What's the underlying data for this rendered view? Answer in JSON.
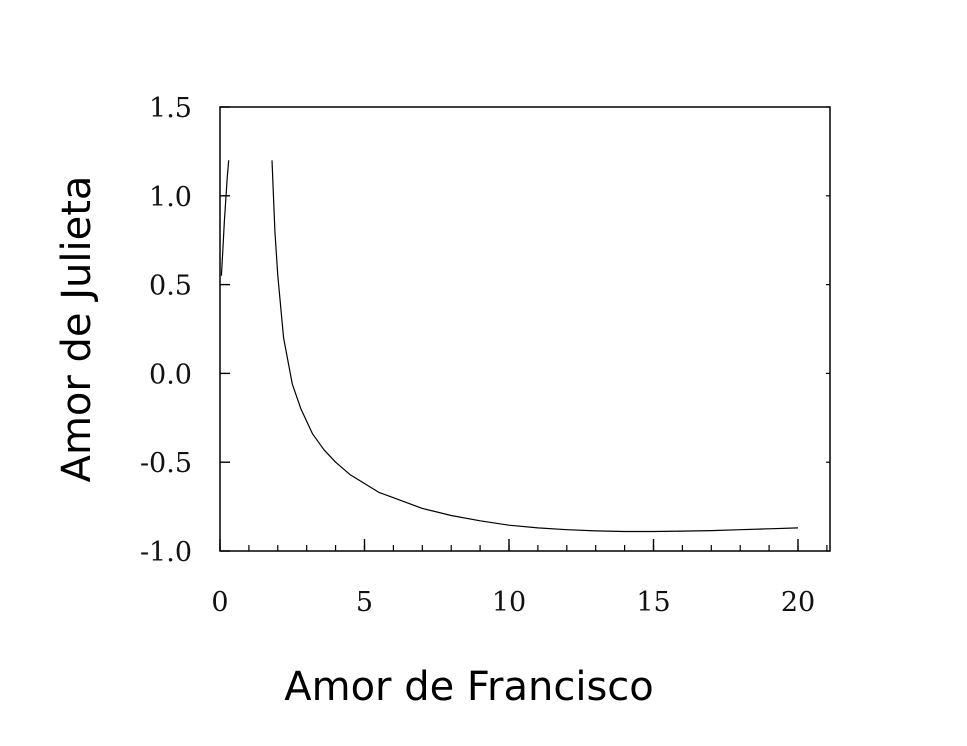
{
  "chart_data": {
    "type": "line",
    "xlabel": "Amor de Francisco",
    "ylabel": "Amor de Julieta",
    "xlim": [
      0,
      21
    ],
    "ylim": [
      -1.0,
      1.5
    ],
    "x_ticks": [
      0,
      5,
      10,
      15,
      20
    ],
    "x_tick_labels": [
      "0",
      "5",
      "10",
      "15",
      "20"
    ],
    "x_minor_step": 1,
    "y_ticks": [
      -1.0,
      -0.5,
      0.0,
      0.5,
      1.0,
      1.5
    ],
    "y_tick_labels": [
      "-1.0",
      "-0.5",
      "0.0",
      "0.5",
      "1.0",
      "1.5"
    ],
    "grid": false,
    "line_color": "#000000",
    "series": [
      {
        "x": [
          0.05,
          0.1,
          0.15,
          0.2,
          0.25,
          0.3
        ],
        "y": [
          0.55,
          0.7,
          0.85,
          0.98,
          1.1,
          1.2
        ]
      },
      {
        "x": [
          1.8,
          1.9,
          2.0,
          2.2,
          2.5,
          2.8,
          3.2,
          3.6,
          4.0,
          4.5,
          5.0,
          5.5,
          6.0,
          7.0,
          8.0,
          9.0,
          10.0,
          11.0,
          12.0,
          13.0,
          14.0,
          15.0,
          16.0,
          17.0,
          18.0,
          19.0,
          20.0
        ],
        "y": [
          1.2,
          0.8,
          0.55,
          0.2,
          -0.06,
          -0.2,
          -0.34,
          -0.43,
          -0.5,
          -0.57,
          -0.62,
          -0.67,
          -0.7,
          -0.76,
          -0.8,
          -0.83,
          -0.855,
          -0.87,
          -0.88,
          -0.887,
          -0.89,
          -0.89,
          -0.888,
          -0.885,
          -0.88,
          -0.875,
          -0.87
        ]
      }
    ]
  }
}
